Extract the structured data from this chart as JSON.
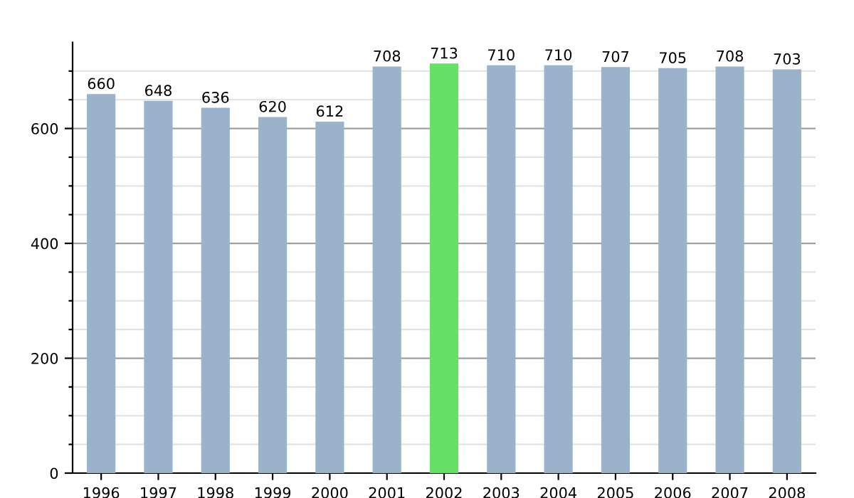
{
  "chart_data": {
    "type": "bar",
    "categories": [
      "1996",
      "1997",
      "1998",
      "1999",
      "2000",
      "2001",
      "2002",
      "2003",
      "2004",
      "2005",
      "2006",
      "2007",
      "2008"
    ],
    "values": [
      660,
      648,
      636,
      620,
      612,
      708,
      713,
      710,
      710,
      707,
      705,
      708,
      703
    ],
    "colors": [
      "#9bb2cb",
      "#9bb2cb",
      "#9bb2cb",
      "#9bb2cb",
      "#9bb2cb",
      "#9bb2cb",
      "#66e066",
      "#9bb2cb",
      "#9bb2cb",
      "#9bb2cb",
      "#9bb2cb",
      "#9bb2cb",
      "#9bb2cb"
    ],
    "ylim": [
      0,
      750
    ],
    "yticks": [
      0,
      {
        "value": 50,
        "label": null
      },
      {
        "value": 100,
        "label": null
      },
      {
        "value": 150,
        "label": null
      },
      200,
      {
        "value": 250,
        "label": null
      },
      {
        "value": 300,
        "label": null
      },
      {
        "value": 350,
        "label": null
      },
      400,
      {
        "value": 450,
        "label": null
      },
      {
        "value": 500,
        "label": null
      },
      {
        "value": 550,
        "label": null
      },
      600,
      {
        "value": 650,
        "label": null
      },
      {
        "value": 700,
        "label": null
      }
    ],
    "grid": "y",
    "data_labels": true
  }
}
